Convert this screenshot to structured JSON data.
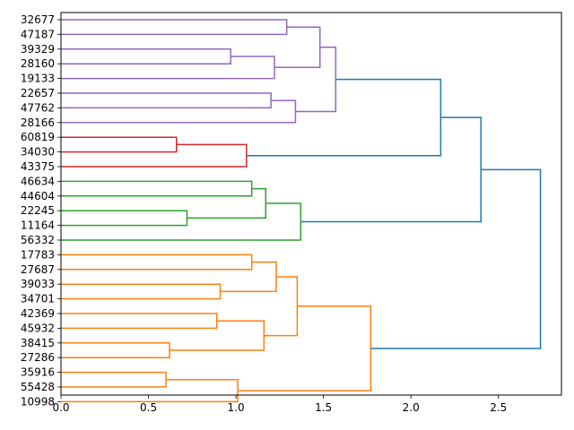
{
  "chart_data": {
    "type": "dendrogram",
    "orientation": "horizontal",
    "title": "",
    "xlabel": "",
    "ylabel": "",
    "xlim": [
      0,
      2.86
    ],
    "x_ticks": [
      0.0,
      0.5,
      1.0,
      1.5,
      2.0,
      2.5
    ],
    "x_tick_labels": [
      "0.0",
      "0.5",
      "1.0",
      "1.5",
      "2.0",
      "2.5"
    ],
    "leaves": [
      "32677",
      "47187",
      "39329",
      "28160",
      "19133",
      "22657",
      "47762",
      "28166",
      "60819",
      "34030",
      "43375",
      "46634",
      "44604",
      "22245",
      "11164",
      "56332",
      "17783",
      "27687",
      "39033",
      "34701",
      "42369",
      "45932",
      "38415",
      "27286",
      "35916",
      "55428",
      "10998"
    ],
    "cluster_colors": {
      "purple": "#9467bd",
      "red": "#d62728",
      "green": "#2ca02c",
      "orange": "#ff7f0e",
      "blue": "#1f77b4"
    },
    "merges": [
      {
        "a": "32677",
        "b": "47187",
        "height": 1.29,
        "color": "purple",
        "id": "p1"
      },
      {
        "a": "39329",
        "b": "28160",
        "height": 0.97,
        "color": "purple",
        "id": "p2"
      },
      {
        "a": "p2",
        "b": "19133",
        "height": 1.22,
        "color": "purple",
        "id": "p3"
      },
      {
        "a": "p1",
        "b": "p3",
        "height": 1.48,
        "color": "purple",
        "id": "p4"
      },
      {
        "a": "22657",
        "b": "47762",
        "height": 1.2,
        "color": "purple",
        "id": "p5"
      },
      {
        "a": "p5",
        "b": "28166",
        "height": 1.34,
        "color": "purple",
        "id": "p6"
      },
      {
        "a": "p4",
        "b": "p6",
        "height": 1.57,
        "color": "purple",
        "id": "p7"
      },
      {
        "a": "60819",
        "b": "34030",
        "height": 0.66,
        "color": "red",
        "id": "r1"
      },
      {
        "a": "r1",
        "b": "43375",
        "height": 1.06,
        "color": "red",
        "id": "r2"
      },
      {
        "a": "p7",
        "b": "r2",
        "height": 2.17,
        "color": "blue",
        "id": "b1"
      },
      {
        "a": "46634",
        "b": "44604",
        "height": 1.09,
        "color": "green",
        "id": "g1"
      },
      {
        "a": "22245",
        "b": "11164",
        "height": 0.72,
        "color": "green",
        "id": "g2"
      },
      {
        "a": "g1",
        "b": "g2",
        "height": 1.17,
        "color": "green",
        "id": "g3"
      },
      {
        "a": "g3",
        "b": "56332",
        "height": 1.37,
        "color": "green",
        "id": "g4"
      },
      {
        "a": "b1",
        "b": "g4",
        "height": 2.4,
        "color": "blue",
        "id": "b2"
      },
      {
        "a": "17783",
        "b": "27687",
        "height": 1.09,
        "color": "orange",
        "id": "o1"
      },
      {
        "a": "39033",
        "b": "34701",
        "height": 0.91,
        "color": "orange",
        "id": "o2"
      },
      {
        "a": "o1",
        "b": "o2",
        "height": 1.23,
        "color": "orange",
        "id": "o3"
      },
      {
        "a": "42369",
        "b": "45932",
        "height": 0.89,
        "color": "orange",
        "id": "o4"
      },
      {
        "a": "38415",
        "b": "27286",
        "height": 0.62,
        "color": "orange",
        "id": "o5"
      },
      {
        "a": "o4",
        "b": "o5",
        "height": 1.16,
        "color": "orange",
        "id": "o6"
      },
      {
        "a": "o3",
        "b": "o6",
        "height": 1.35,
        "color": "orange",
        "id": "o7"
      },
      {
        "a": "35916",
        "b": "55428",
        "height": 0.6,
        "color": "orange",
        "id": "o8"
      },
      {
        "a": "o8",
        "b": "10998",
        "height": 1.01,
        "color": "orange",
        "id": "o9"
      },
      {
        "a": "o7",
        "b": "o9",
        "height": 1.77,
        "color": "orange",
        "id": "o10"
      },
      {
        "a": "b2",
        "b": "o10",
        "height": 2.74,
        "color": "blue",
        "id": "b3"
      }
    ]
  }
}
